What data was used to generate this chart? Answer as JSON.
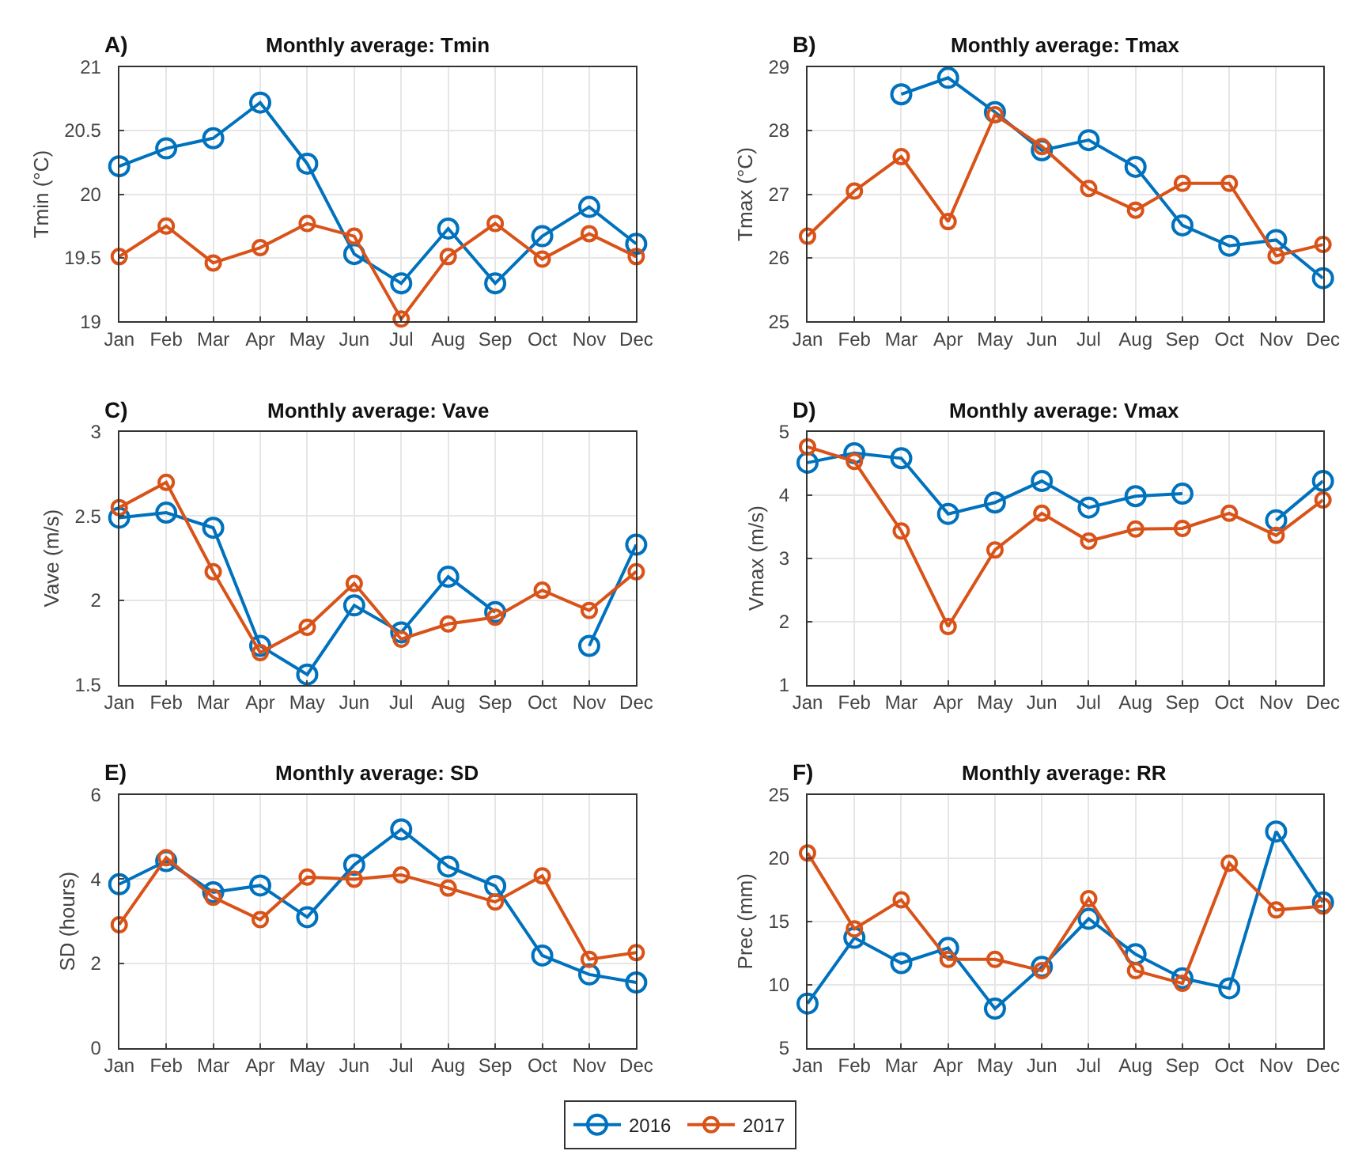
{
  "chart_data": [
    {
      "type": "line",
      "title": "Monthly average: Tmin",
      "annotations": [
        "A)"
      ],
      "ylabel": "Tmin (°C)",
      "categories": [
        "Jan",
        "Feb",
        "Mar",
        "Apr",
        "May",
        "Jun",
        "Jul",
        "Aug",
        "Sep",
        "Oct",
        "Nov",
        "Dec"
      ],
      "ylim": [
        19,
        21
      ],
      "yticks": [
        19,
        19.5,
        20,
        20.5,
        21
      ],
      "grid": true,
      "marker": "circle",
      "legend": "bottom",
      "series": [
        {
          "name": "2016",
          "color": "#0072bd",
          "values": [
            20.22,
            20.36,
            20.44,
            20.72,
            20.24,
            19.53,
            19.3,
            19.73,
            19.3,
            19.67,
            19.9,
            19.61
          ]
        },
        {
          "name": "2017",
          "color": "#d95319",
          "values": [
            19.51,
            19.75,
            19.46,
            19.58,
            19.77,
            19.67,
            19.02,
            19.51,
            19.77,
            19.49,
            19.69,
            19.51
          ]
        }
      ]
    },
    {
      "type": "line",
      "title": "Monthly average: Tmax",
      "annotations": [
        "B)"
      ],
      "ylabel": "Tmax (°C)",
      "categories": [
        "Jan",
        "Feb",
        "Mar",
        "Apr",
        "May",
        "Jun",
        "Jul",
        "Aug",
        "Sep",
        "Oct",
        "Nov",
        "Dec"
      ],
      "ylim": [
        25,
        29
      ],
      "yticks": [
        25,
        26,
        27,
        28,
        29
      ],
      "grid": true,
      "marker": "circle",
      "series": [
        {
          "name": "2016",
          "color": "#0072bd",
          "values": [
            null,
            null,
            28.57,
            28.83,
            28.29,
            27.69,
            27.85,
            27.43,
            26.51,
            26.19,
            26.28,
            25.68
          ]
        },
        {
          "name": "2017",
          "color": "#d95319",
          "values": [
            26.34,
            27.05,
            27.59,
            26.57,
            28.25,
            27.75,
            27.09,
            26.75,
            27.17,
            27.17,
            26.03,
            26.21
          ]
        }
      ]
    },
    {
      "type": "line",
      "title": "Monthly average: Vave",
      "annotations": [
        "C)"
      ],
      "ylabel": "Vave (m/s)",
      "categories": [
        "Jan",
        "Feb",
        "Mar",
        "Apr",
        "May",
        "Jun",
        "Jul",
        "Aug",
        "Sep",
        "Oct",
        "Nov",
        "Dec"
      ],
      "ylim": [
        1.5,
        3
      ],
      "yticks": [
        1.5,
        2,
        2.5,
        3
      ],
      "grid": true,
      "marker": "circle",
      "series": [
        {
          "name": "2016",
          "color": "#0072bd",
          "values": [
            2.49,
            2.52,
            2.43,
            1.73,
            1.56,
            1.97,
            1.81,
            2.14,
            1.93,
            null,
            1.73,
            2.33
          ]
        },
        {
          "name": "2017",
          "color": "#d95319",
          "values": [
            2.55,
            2.7,
            2.17,
            1.69,
            1.84,
            2.1,
            1.77,
            1.86,
            1.9,
            2.06,
            1.94,
            2.17
          ]
        }
      ]
    },
    {
      "type": "line",
      "title": "Monthly average: Vmax",
      "annotations": [
        "D)"
      ],
      "ylabel": "Vmax (m/s)",
      "categories": [
        "Jan",
        "Feb",
        "Mar",
        "Apr",
        "May",
        "Jun",
        "Jul",
        "Aug",
        "Sep",
        "Oct",
        "Nov",
        "Dec"
      ],
      "ylim": [
        1,
        5
      ],
      "yticks": [
        1,
        2,
        3,
        4,
        5
      ],
      "grid": true,
      "marker": "circle",
      "series": [
        {
          "name": "2016",
          "color": "#0072bd",
          "values": [
            4.51,
            4.66,
            4.58,
            3.7,
            3.88,
            4.22,
            3.8,
            3.98,
            4.02,
            null,
            3.6,
            4.22
          ]
        },
        {
          "name": "2017",
          "color": "#d95319",
          "values": [
            4.76,
            4.53,
            3.43,
            1.92,
            3.13,
            3.71,
            3.27,
            3.46,
            3.47,
            3.71,
            3.36,
            3.92
          ]
        }
      ]
    },
    {
      "type": "line",
      "title": "Monthly average: SD",
      "annotations": [
        "E)"
      ],
      "ylabel": "SD (hours)",
      "categories": [
        "Jan",
        "Feb",
        "Mar",
        "Apr",
        "May",
        "Jun",
        "Jul",
        "Aug",
        "Sep",
        "Oct",
        "Nov",
        "Dec"
      ],
      "ylim": [
        0,
        6
      ],
      "yticks": [
        0,
        2,
        4,
        6
      ],
      "grid": true,
      "marker": "circle",
      "series": [
        {
          "name": "2016",
          "color": "#0072bd",
          "values": [
            3.88,
            4.43,
            3.69,
            3.85,
            3.1,
            4.34,
            5.18,
            4.3,
            3.84,
            2.19,
            1.74,
            1.55
          ]
        },
        {
          "name": "2017",
          "color": "#d95319",
          "values": [
            2.92,
            4.51,
            3.57,
            3.04,
            4.05,
            4.0,
            4.1,
            3.79,
            3.46,
            4.08,
            2.1,
            2.26
          ]
        }
      ]
    },
    {
      "type": "line",
      "title": "Monthly average: RR",
      "annotations": [
        "F)"
      ],
      "ylabel": "Prec (mm)",
      "categories": [
        "Jan",
        "Feb",
        "Mar",
        "Apr",
        "May",
        "Jun",
        "Jul",
        "Aug",
        "Sep",
        "Oct",
        "Nov",
        "Dec"
      ],
      "ylim": [
        5,
        25
      ],
      "yticks": [
        5,
        10,
        15,
        20,
        25
      ],
      "grid": true,
      "marker": "circle",
      "series": [
        {
          "name": "2016",
          "color": "#0072bd",
          "values": [
            8.5,
            13.7,
            11.7,
            12.9,
            8.1,
            11.4,
            15.2,
            12.4,
            10.5,
            9.7,
            22.1,
            16.5
          ]
        },
        {
          "name": "2017",
          "color": "#d95319",
          "values": [
            20.4,
            14.4,
            16.7,
            12.0,
            12.0,
            11.1,
            16.8,
            11.1,
            10.1,
            19.6,
            15.9,
            16.2
          ]
        }
      ]
    }
  ]
}
